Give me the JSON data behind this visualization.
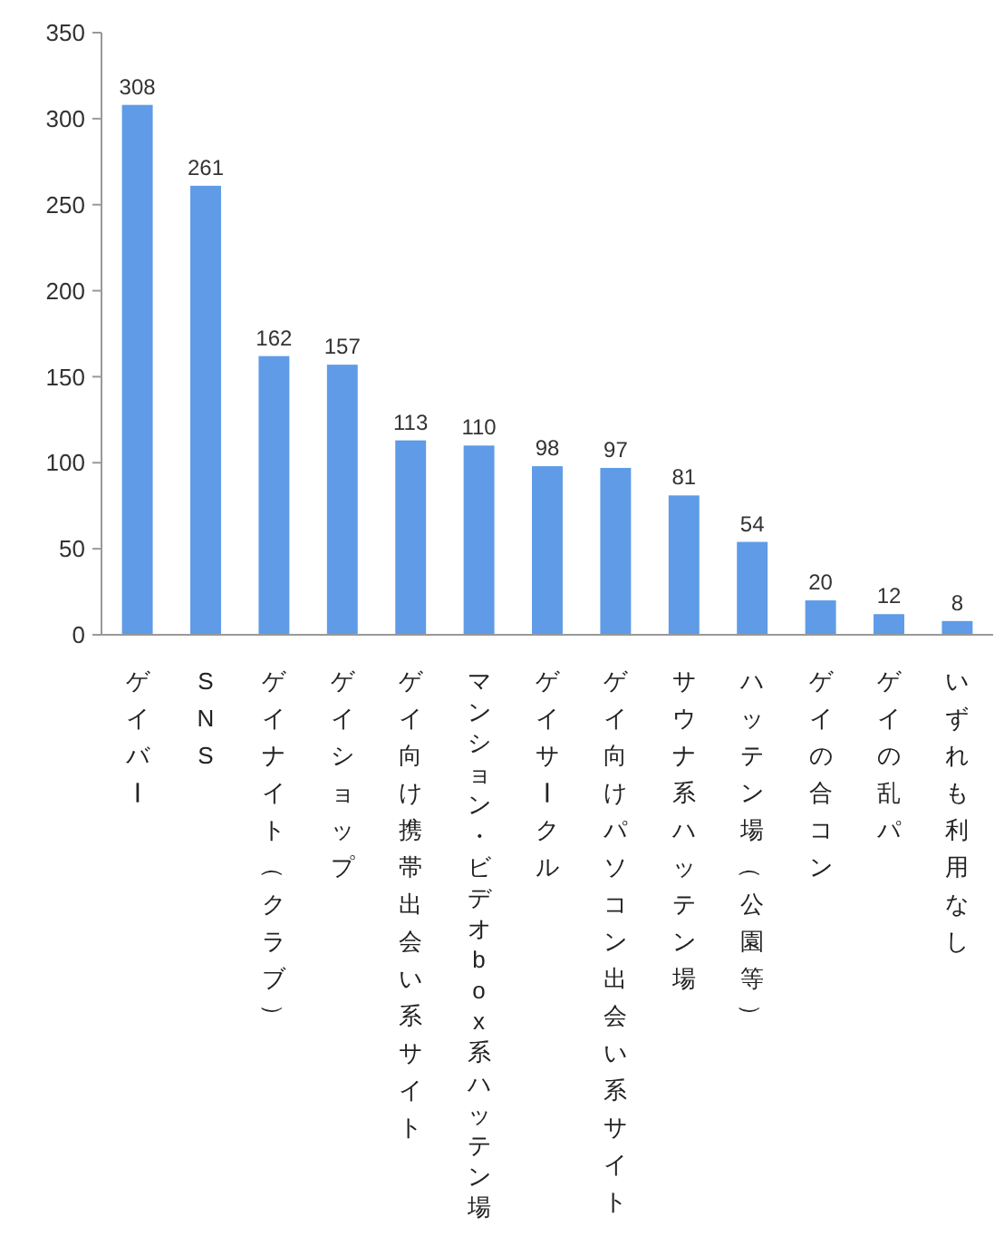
{
  "chart_data": {
    "type": "bar",
    "categories": [
      "ゲイバー",
      "SNS",
      "ゲイナイト（クラブ）",
      "ゲイショップ",
      "ゲイ向け携帯出会い系サイト",
      "マンション・ビデオbox系ハッテン場",
      "ゲイサークル",
      "ゲイ向けパソコン出会い系サイト",
      "サウナ系ハッテン場",
      "ハッテン場（公園等）",
      "ゲイの合コン",
      "ゲイの乱パ",
      "いずれも利用なし"
    ],
    "values": [
      308,
      261,
      162,
      157,
      113,
      110,
      98,
      97,
      81,
      54,
      20,
      12,
      8
    ],
    "color": "#5f9be6",
    "ylim": [
      0,
      350
    ],
    "yticks": [
      0,
      50,
      100,
      150,
      200,
      250,
      300,
      350
    ],
    "grid": false,
    "data_labels": true
  }
}
